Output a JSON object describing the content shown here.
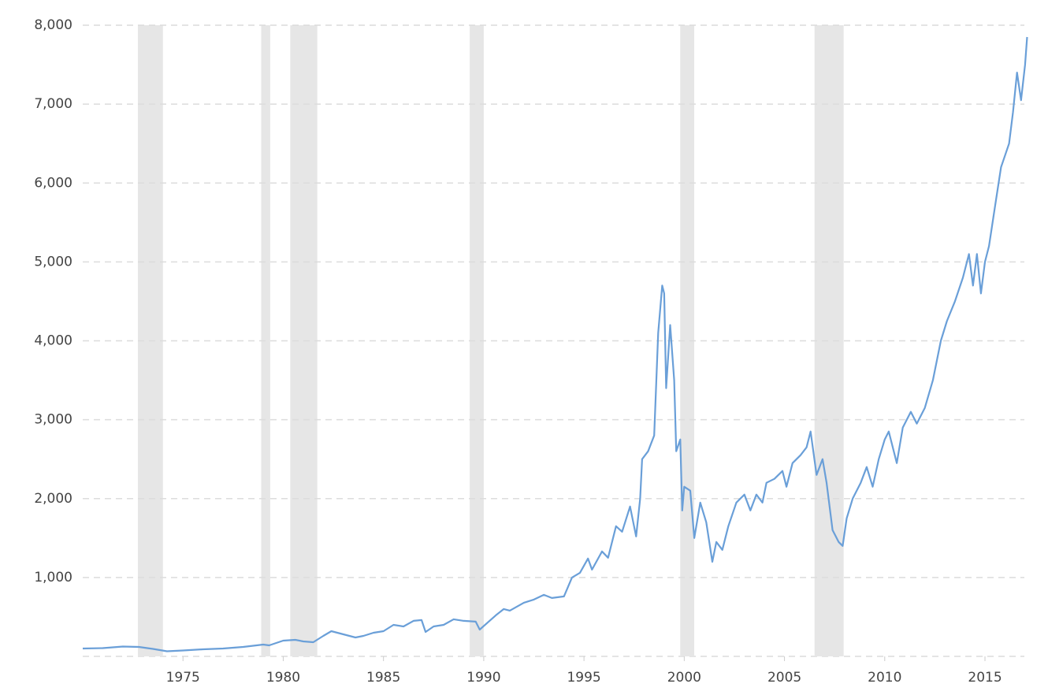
{
  "chart_data": {
    "type": "line",
    "x": [
      1970.0,
      1971.0,
      1972.0,
      1972.8,
      1973.5,
      1974.2,
      1975.0,
      1976.0,
      1977.0,
      1978.0,
      1979.0,
      1979.3,
      1980.0,
      1980.6,
      1981.0,
      1981.5,
      1982.0,
      1982.4,
      1983.0,
      1983.6,
      1984.0,
      1984.5,
      1985.0,
      1985.5,
      1986.0,
      1986.5,
      1986.9,
      1987.1,
      1987.5,
      1988.0,
      1988.5,
      1989.0,
      1989.6,
      1989.8,
      1990.2,
      1990.6,
      1991.0,
      1991.3,
      1992.0,
      1992.5,
      1993.0,
      1993.4,
      1994.0,
      1994.4,
      1994.8,
      1995.2,
      1995.4,
      1995.9,
      1996.2,
      1996.6,
      1996.9,
      1997.3,
      1997.6,
      1997.8,
      1997.9,
      1998.2,
      1998.5,
      1998.7,
      1998.9,
      1999.0,
      1999.1,
      1999.3,
      1999.5,
      1999.6,
      1999.8,
      1999.9,
      2000.0,
      2000.3,
      2000.5,
      2000.8,
      2001.1,
      2001.4,
      2001.6,
      2001.9,
      2002.2,
      2002.6,
      2003.0,
      2003.3,
      2003.6,
      2003.9,
      2004.1,
      2004.5,
      2004.9,
      2005.1,
      2005.4,
      2005.8,
      2006.1,
      2006.3,
      2006.6,
      2006.9,
      2007.1,
      2007.4,
      2007.7,
      2007.9,
      2008.1,
      2008.4,
      2008.8,
      2009.1,
      2009.4,
      2009.7,
      2010.0,
      2010.2,
      2010.6,
      2010.9,
      2011.3,
      2011.6,
      2012.0,
      2012.4,
      2012.8,
      2013.1,
      2013.5,
      2013.9,
      2014.2,
      2014.4,
      2014.6,
      2014.8,
      2015.0,
      2015.2,
      2015.5,
      2015.8,
      2016.2,
      2016.4,
      2016.6,
      2016.8,
      2017.0,
      2017.1
    ],
    "values": [
      100,
      105,
      125,
      120,
      95,
      65,
      75,
      90,
      100,
      120,
      150,
      140,
      200,
      210,
      190,
      180,
      260,
      320,
      280,
      240,
      260,
      300,
      320,
      400,
      380,
      450,
      460,
      310,
      380,
      400,
      470,
      450,
      440,
      340,
      430,
      520,
      600,
      580,
      680,
      720,
      780,
      740,
      760,
      1000,
      1060,
      1240,
      1100,
      1330,
      1250,
      1650,
      1580,
      1900,
      1520,
      2000,
      2500,
      2600,
      2800,
      4100,
      4700,
      4600,
      3400,
      4200,
      3500,
      2600,
      2750,
      1850,
      2150,
      2100,
      1500,
      1950,
      1700,
      1200,
      1450,
      1350,
      1650,
      1950,
      2050,
      1850,
      2050,
      1950,
      2200,
      2250,
      2350,
      2150,
      2450,
      2550,
      2650,
      2850,
      2300,
      2500,
      2200,
      1600,
      1450,
      1400,
      1750,
      2000,
      2200,
      2400,
      2150,
      2500,
      2750,
      2850,
      2450,
      2900,
      3100,
      2950,
      3150,
      3500,
      4000,
      4250,
      4500,
      4800,
      5100,
      4700,
      5100,
      4600,
      5000,
      5200,
      5700,
      6200,
      6500,
      6900,
      7400,
      7050,
      7500,
      7850
    ],
    "color": "#6a9fd8",
    "xlim": [
      1970,
      2017.2
    ],
    "xticks": [
      1975,
      1980,
      1985,
      1990,
      1995,
      2000,
      2005,
      2010,
      2015
    ],
    "ylim": [
      0,
      8000
    ],
    "yticks": [
      {
        "value": 1000,
        "label": "1,000"
      },
      {
        "value": 2000,
        "label": "2,000"
      },
      {
        "value": 3000,
        "label": "3,000"
      },
      {
        "value": 4000,
        "label": "4,000"
      },
      {
        "value": 5000,
        "label": "5,000"
      },
      {
        "value": 6000,
        "label": "6,000"
      },
      {
        "value": 7000,
        "label": "7,000"
      },
      {
        "value": 8000,
        "label": "8,000"
      }
    ],
    "grid": true,
    "shaded_regions": [
      [
        1972.75,
        1974.0
      ],
      [
        1978.9,
        1979.35
      ],
      [
        1980.35,
        1981.7
      ],
      [
        1989.3,
        1990.0
      ],
      [
        1999.8,
        2000.5
      ],
      [
        2006.5,
        2007.95
      ]
    ]
  }
}
